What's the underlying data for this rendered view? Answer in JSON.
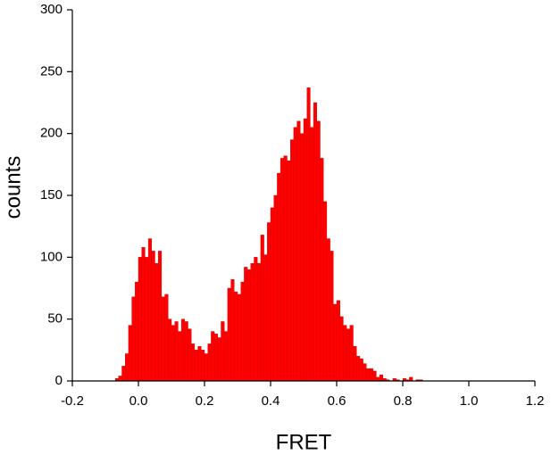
{
  "chart_data": {
    "type": "histogram",
    "xlabel": "FRET",
    "ylabel": "counts",
    "color": "#ff0000",
    "bins": [
      -0.07,
      -0.06,
      -0.05,
      -0.04,
      -0.03,
      -0.02,
      -0.01,
      0.0,
      0.01,
      0.02,
      0.03,
      0.04,
      0.05,
      0.06,
      0.07,
      0.08,
      0.09,
      0.1,
      0.11,
      0.12,
      0.13,
      0.14,
      0.15,
      0.16,
      0.17,
      0.18,
      0.19,
      0.2,
      0.21,
      0.22,
      0.23,
      0.24,
      0.25,
      0.26,
      0.27,
      0.28,
      0.29,
      0.3,
      0.31,
      0.32,
      0.33,
      0.34,
      0.35,
      0.36,
      0.37,
      0.38,
      0.39,
      0.4,
      0.41,
      0.42,
      0.43,
      0.44,
      0.45,
      0.46,
      0.47,
      0.48,
      0.49,
      0.5,
      0.51,
      0.52,
      0.53,
      0.54,
      0.55,
      0.56,
      0.57,
      0.58,
      0.59,
      0.6,
      0.61,
      0.62,
      0.63,
      0.64,
      0.65,
      0.66,
      0.67,
      0.68,
      0.69,
      0.7,
      0.71,
      0.72,
      0.73,
      0.74,
      0.75,
      0.76,
      0.77,
      0.78,
      0.79,
      0.8,
      0.81,
      0.82,
      0.83,
      0.84,
      0.85,
      0.86,
      0.87
    ],
    "values": [
      2,
      4,
      12,
      22,
      45,
      68,
      80,
      100,
      108,
      100,
      115,
      105,
      95,
      105,
      68,
      70,
      50,
      45,
      48,
      40,
      50,
      48,
      42,
      30,
      25,
      28,
      25,
      22,
      30,
      40,
      38,
      35,
      48,
      40,
      75,
      82,
      72,
      70,
      80,
      92,
      90,
      95,
      100,
      95,
      118,
      102,
      128,
      140,
      150,
      168,
      180,
      182,
      178,
      195,
      205,
      210,
      200,
      212,
      237,
      205,
      225,
      210,
      180,
      145,
      115,
      105,
      62,
      65,
      52,
      45,
      42,
      45,
      28,
      20,
      18,
      14,
      10,
      10,
      8,
      3,
      5,
      2,
      1,
      0,
      2,
      1,
      0,
      2,
      1,
      3,
      0,
      1,
      1,
      0
    ],
    "xlim": [
      -0.2,
      1.2
    ],
    "xticks": [
      -0.2,
      {
        "value": 0,
        "label": "0.0"
      },
      0.2,
      0.4,
      0.6,
      0.8,
      {
        "value": 1,
        "label": "1.0"
      },
      1.2
    ],
    "ylim": [
      0,
      300
    ],
    "yticks": [
      0,
      50,
      100,
      150,
      200,
      250,
      300
    ]
  }
}
